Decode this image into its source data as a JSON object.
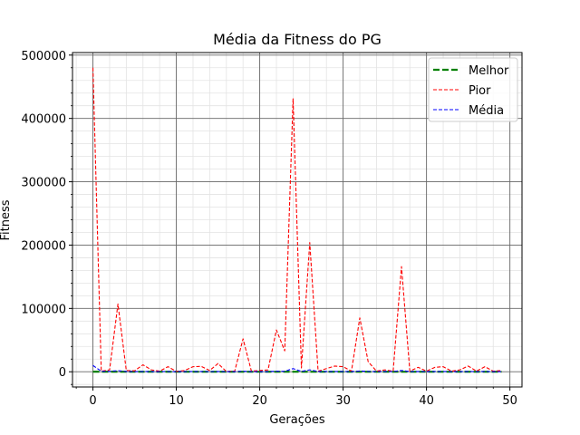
{
  "chart_data": {
    "type": "line",
    "title": "Média da Fitness do PG",
    "xlabel": "Gerações",
    "ylabel": "Fitness",
    "xlim": [
      -2.45,
      51.45
    ],
    "ylim": [
      -24000,
      504000
    ],
    "xticks": [
      0,
      10,
      20,
      30,
      40,
      50
    ],
    "xtick_labels": [
      "0",
      "10",
      "20",
      "30",
      "40",
      "50"
    ],
    "yticks": [
      0,
      100000,
      200000,
      300000,
      400000,
      500000
    ],
    "ytick_labels": [
      "0",
      "100000",
      "200000",
      "300000",
      "400000",
      "500000"
    ],
    "x_minor_step": 2,
    "y_minor_step": 20000,
    "grid": true,
    "legend_position": "top-right",
    "x": [
      0,
      1,
      2,
      3,
      4,
      5,
      6,
      7,
      8,
      9,
      10,
      11,
      12,
      13,
      14,
      15,
      16,
      17,
      18,
      19,
      20,
      21,
      22,
      23,
      24,
      25,
      26,
      27,
      28,
      29,
      30,
      31,
      32,
      33,
      34,
      35,
      36,
      37,
      38,
      39,
      40,
      41,
      42,
      43,
      44,
      45,
      46,
      47,
      48,
      49
    ],
    "series": [
      {
        "name": "Melhor",
        "color": "#008000",
        "style": "dashed-thick",
        "values": [
          200,
          150,
          120,
          100,
          100,
          90,
          90,
          80,
          80,
          80,
          80,
          70,
          70,
          70,
          70,
          60,
          60,
          60,
          60,
          60,
          60,
          50,
          50,
          50,
          50,
          50,
          50,
          50,
          50,
          50,
          40,
          40,
          40,
          40,
          40,
          40,
          40,
          40,
          40,
          40,
          40,
          40,
          40,
          40,
          40,
          40,
          40,
          40,
          40,
          40
        ]
      },
      {
        "name": "Pior",
        "color": "#ff0000",
        "style": "dashed",
        "values": [
          480000,
          1000,
          3000,
          107000,
          2000,
          1500,
          11000,
          3000,
          1000,
          8000,
          500,
          2000,
          8000,
          8500,
          2000,
          13000,
          500,
          1000,
          52000,
          1000,
          2000,
          3000,
          66000,
          33000,
          431000,
          6000,
          204000,
          1000,
          5000,
          9000,
          8000,
          1000,
          85000,
          16000,
          1000,
          3000,
          1000,
          166000,
          1000,
          7000,
          1000,
          7000,
          8000,
          1000,
          3000,
          9000,
          1000,
          8000,
          1000,
          2000
        ]
      },
      {
        "name": "Média",
        "color": "#0000ff",
        "style": "dashed",
        "values": [
          10000,
          800,
          600,
          1800,
          400,
          300,
          500,
          300,
          300,
          400,
          200,
          300,
          400,
          400,
          300,
          500,
          200,
          300,
          800,
          300,
          300,
          300,
          900,
          700,
          5000,
          600,
          3000,
          400,
          400,
          500,
          400,
          300,
          1200,
          600,
          300,
          400,
          300,
          2000,
          300,
          400,
          300,
          400,
          400,
          300,
          300,
          400,
          300,
          400,
          300,
          300
        ]
      }
    ]
  }
}
